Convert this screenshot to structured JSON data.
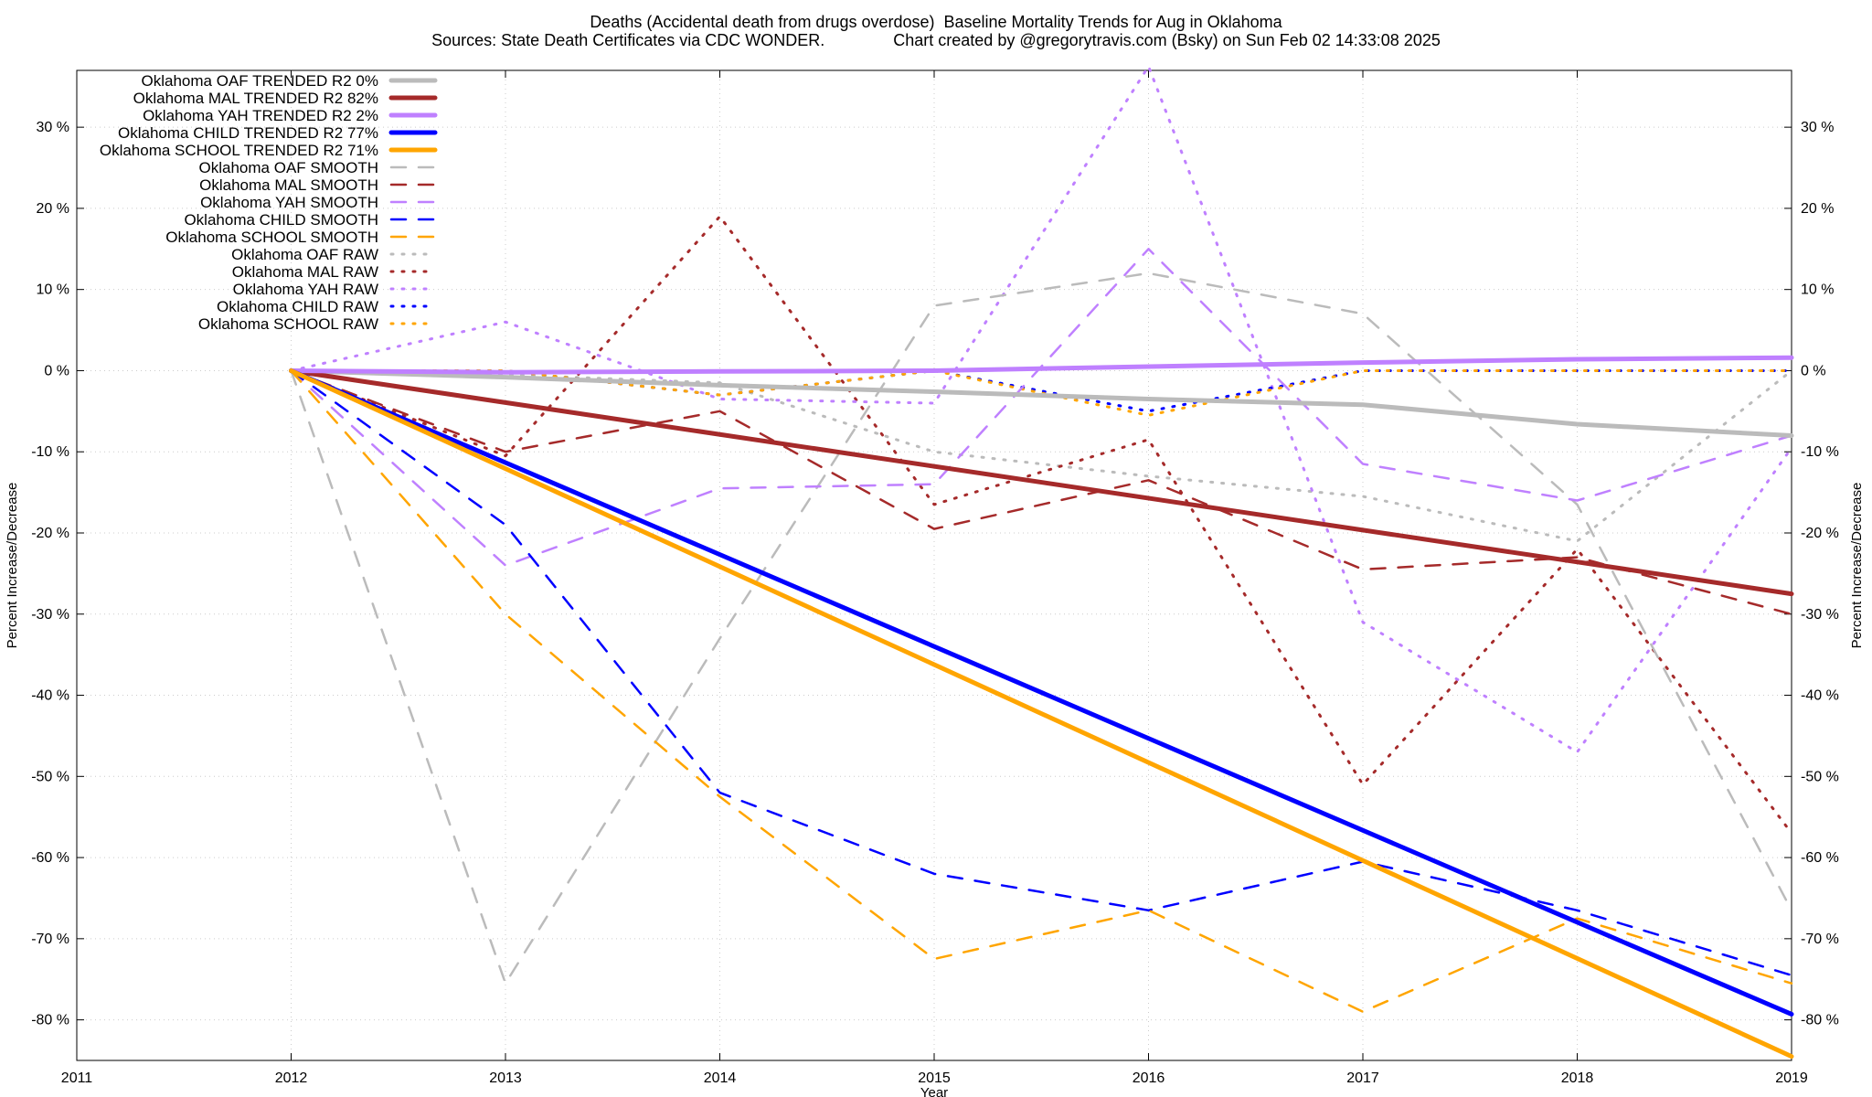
{
  "title_line1": "Deaths (Accidental death from drugs overdose)  Baseline Mortality Trends for Aug in Oklahoma",
  "title_line2": "Sources: State Death Certificates via CDC WONDER.               Chart created by @gregorytravis.com (Bsky) on Sun Feb 02 14:33:08 2025",
  "chart_data": {
    "type": "line",
    "xlabel": "Year",
    "ylabel": "Percent Increase/Decrease",
    "y2label": "Percent Increase/Decrease",
    "xlim": [
      2011,
      2019
    ],
    "ylim": [
      -85,
      37
    ],
    "x_ticks": [
      2011,
      2012,
      2013,
      2014,
      2015,
      2016,
      2017,
      2018,
      2019
    ],
    "x_tick_labels": [
      "2011",
      "2012",
      "2013",
      "2014",
      "2015",
      "2016",
      "2017",
      "2018",
      "2019"
    ],
    "y_ticks": [
      30,
      20,
      10,
      0,
      -10,
      -20,
      -30,
      -40,
      -50,
      -60,
      -70,
      -80
    ],
    "y_tick_labels": [
      "30 %",
      "20 %",
      "10 %",
      "0 %",
      "-10 %",
      "-20 %",
      "-30 %",
      "-40 %",
      "-50 %",
      "-60 %",
      "-70 %",
      "-80 %"
    ],
    "grid": true,
    "legend_position": "top-left",
    "series": [
      {
        "name": "Oklahoma OAF TRENDED R2  0%",
        "style": "solid",
        "color": "#bbbbbb",
        "x": [
          2012,
          2013,
          2014,
          2015,
          2016,
          2017,
          2018,
          2019
        ],
        "y": [
          0,
          -0.8,
          -1.8,
          -2.6,
          -3.5,
          -4.2,
          -6.6,
          -8.0
        ]
      },
      {
        "name": "Oklahoma MAL TRENDED R2  82%",
        "style": "solid",
        "color": "#a52a2a",
        "x": [
          2012,
          2019
        ],
        "y": [
          0,
          -27.5
        ]
      },
      {
        "name": "Oklahoma YAH TRENDED R2  2%",
        "style": "solid",
        "color": "#bf80ff",
        "x": [
          2012,
          2013,
          2014,
          2015,
          2016,
          2017,
          2018,
          2019
        ],
        "y": [
          0,
          -0.2,
          -0.1,
          0.0,
          0.5,
          1.0,
          1.4,
          1.6
        ]
      },
      {
        "name": "Oklahoma CHILD TRENDED R2  77%",
        "style": "solid",
        "color": "#0000ff",
        "x": [
          2012,
          2019
        ],
        "y": [
          0,
          -79.3
        ]
      },
      {
        "name": "Oklahoma SCHOOL TRENDED R2  71%",
        "style": "solid",
        "color": "#ffa500",
        "x": [
          2012,
          2019
        ],
        "y": [
          0,
          -84.5
        ]
      },
      {
        "name": "Oklahoma OAF SMOOTH",
        "style": "dashed",
        "color": "#bbbbbb",
        "x": [
          2012,
          2013,
          2014,
          2015,
          2016,
          2017,
          2018,
          2019
        ],
        "y": [
          0,
          -75.5,
          -33,
          8,
          12,
          7,
          -16.5,
          -66.5
        ]
      },
      {
        "name": "Oklahoma MAL SMOOTH",
        "style": "dashed",
        "color": "#a52a2a",
        "x": [
          2012,
          2013,
          2014,
          2015,
          2016,
          2017,
          2018,
          2019
        ],
        "y": [
          0,
          -10,
          -5,
          -19.5,
          -13.5,
          -24.5,
          -23,
          -30
        ]
      },
      {
        "name": "Oklahoma YAH SMOOTH",
        "style": "dashed",
        "color": "#bf80ff",
        "x": [
          2012,
          2013,
          2014,
          2015,
          2016,
          2017,
          2018,
          2019
        ],
        "y": [
          0,
          -24,
          -14.5,
          -14,
          15,
          -11.5,
          -16,
          -8
        ]
      },
      {
        "name": "Oklahoma CHILD SMOOTH",
        "style": "dashed",
        "color": "#0000ff",
        "x": [
          2012,
          2013,
          2014,
          2015,
          2016,
          2017,
          2018,
          2019
        ],
        "y": [
          0,
          -19,
          -52,
          -62,
          -66.5,
          -60.5,
          -66.5,
          -74.5
        ]
      },
      {
        "name": "Oklahoma SCHOOL SMOOTH",
        "style": "dashed",
        "color": "#ffa500",
        "x": [
          2012,
          2013,
          2014,
          2015,
          2016,
          2017,
          2018,
          2019
        ],
        "y": [
          0,
          -30,
          -52.5,
          -72.5,
          -66.5,
          -79,
          -67.5,
          -75.5
        ]
      },
      {
        "name": "Oklahoma OAF RAW",
        "style": "dotted",
        "color": "#bbbbbb",
        "x": [
          2012,
          2013,
          2014,
          2015,
          2016,
          2017,
          2018,
          2019
        ],
        "y": [
          0,
          -0.5,
          -1.5,
          -10,
          -13,
          -15.5,
          -21,
          0
        ]
      },
      {
        "name": "Oklahoma MAL RAW",
        "style": "dotted",
        "color": "#a52a2a",
        "x": [
          2012,
          2013,
          2014,
          2015,
          2016,
          2017,
          2018,
          2019
        ],
        "y": [
          0,
          -10.5,
          19,
          -16.5,
          -8.5,
          -51,
          -22,
          -57
        ]
      },
      {
        "name": "Oklahoma YAH RAW",
        "style": "dotted",
        "color": "#bf80ff",
        "x": [
          2012,
          2013,
          2014,
          2015,
          2016,
          2017,
          2018,
          2019
        ],
        "y": [
          0,
          6,
          -3.5,
          -4,
          37.5,
          -31,
          -47,
          -9.5
        ]
      },
      {
        "name": "Oklahoma CHILD RAW",
        "style": "dotted",
        "color": "#0000ff",
        "x": [
          2012,
          2013,
          2014,
          2015,
          2016,
          2017,
          2018,
          2019
        ],
        "y": [
          0,
          0,
          -3,
          0,
          -5,
          0,
          0,
          0
        ]
      },
      {
        "name": "Oklahoma SCHOOL RAW",
        "style": "dotted",
        "color": "#ffa500",
        "x": [
          2012,
          2013,
          2014,
          2015,
          2016,
          2017,
          2018,
          2019
        ],
        "y": [
          0,
          0,
          -3,
          0,
          -5.5,
          0,
          0,
          0
        ]
      }
    ]
  }
}
